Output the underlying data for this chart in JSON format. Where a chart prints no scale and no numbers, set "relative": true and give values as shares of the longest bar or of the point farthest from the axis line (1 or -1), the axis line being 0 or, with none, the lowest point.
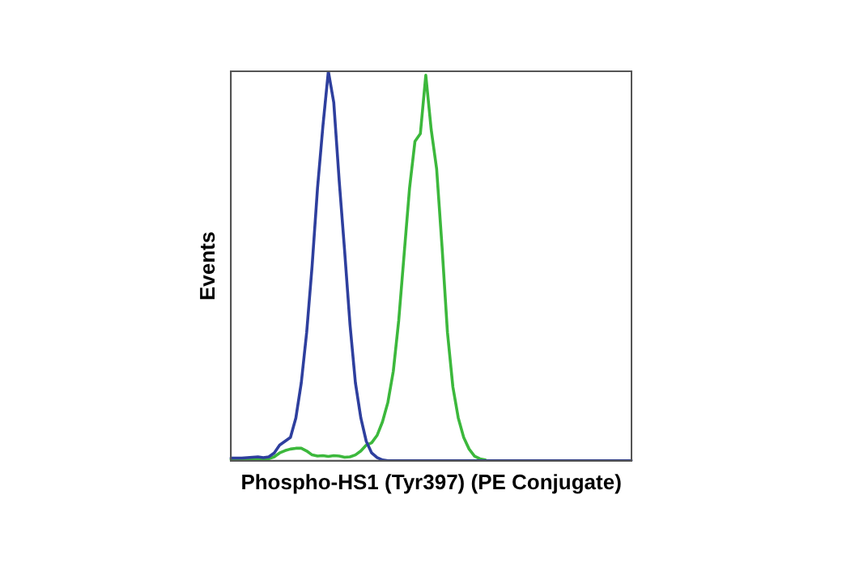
{
  "chart_data": {
    "type": "line",
    "relative": true,
    "xlabel": "Phospho-HS1 (Tyr397) (PE Conjugate)",
    "ylabel": "Events",
    "grid": false,
    "legend": false,
    "marker": "none",
    "line_style": "solid",
    "categories": [
      null,
      null,
      null,
      null,
      null,
      null,
      null,
      null,
      null,
      null,
      null,
      null,
      null,
      null,
      null,
      null,
      null,
      null,
      null,
      null,
      null,
      null,
      null,
      null,
      null,
      null,
      null,
      null,
      null,
      null,
      null,
      null,
      null,
      null,
      null,
      null,
      null,
      null,
      null,
      null,
      null,
      null,
      null,
      null,
      null,
      null,
      null,
      null,
      null,
      null,
      null,
      null,
      null,
      null,
      null,
      null,
      null,
      null,
      null,
      null,
      null,
      null,
      null,
      null,
      null,
      null,
      null,
      null,
      null,
      null,
      null,
      null,
      null,
      null,
      null
    ],
    "series": [
      {
        "color": "#2e3f9e",
        "values": [
          0.007,
          0.007,
          0.007,
          0.008,
          0.009,
          0.01,
          0.008,
          0.01,
          0.02,
          0.04,
          0.05,
          0.06,
          0.11,
          0.2,
          0.33,
          0.5,
          0.7,
          0.86,
          1,
          0.92,
          0.72,
          0.54,
          0.35,
          0.2,
          0.11,
          0.05,
          0.02,
          0.008,
          0.002,
          0,
          0,
          0,
          0,
          0,
          0,
          0,
          0,
          0,
          0,
          0,
          0,
          0,
          0,
          0,
          0,
          0,
          0,
          0,
          0,
          0,
          0,
          0,
          0,
          0,
          0,
          0,
          0,
          0,
          0,
          0,
          0,
          0,
          0,
          0,
          0,
          0,
          0,
          0,
          0,
          0,
          0,
          0,
          0,
          0,
          0
        ]
      },
      {
        "color": "#3cb83c",
        "values": [
          0.003,
          0.003,
          0.003,
          0.003,
          0.003,
          0.003,
          0.003,
          0.005,
          0.01,
          0.02,
          0.026,
          0.03,
          0.032,
          0.032,
          0.025,
          0.015,
          0.012,
          0.013,
          0.011,
          0.013,
          0.012,
          0.009,
          0.01,
          0.015,
          0.025,
          0.04,
          0.046,
          0.065,
          0.1,
          0.15,
          0.23,
          0.36,
          0.53,
          0.7,
          0.82,
          0.84,
          0.99,
          0.85,
          0.75,
          0.55,
          0.33,
          0.19,
          0.11,
          0.06,
          0.03,
          0.012,
          0.005,
          0.002,
          null,
          null,
          null,
          null,
          null,
          null,
          null,
          null,
          null,
          null,
          null,
          null,
          null,
          null,
          null,
          null,
          null,
          null,
          null,
          null,
          null,
          null,
          null,
          null,
          null,
          null,
          null
        ]
      }
    ]
  }
}
